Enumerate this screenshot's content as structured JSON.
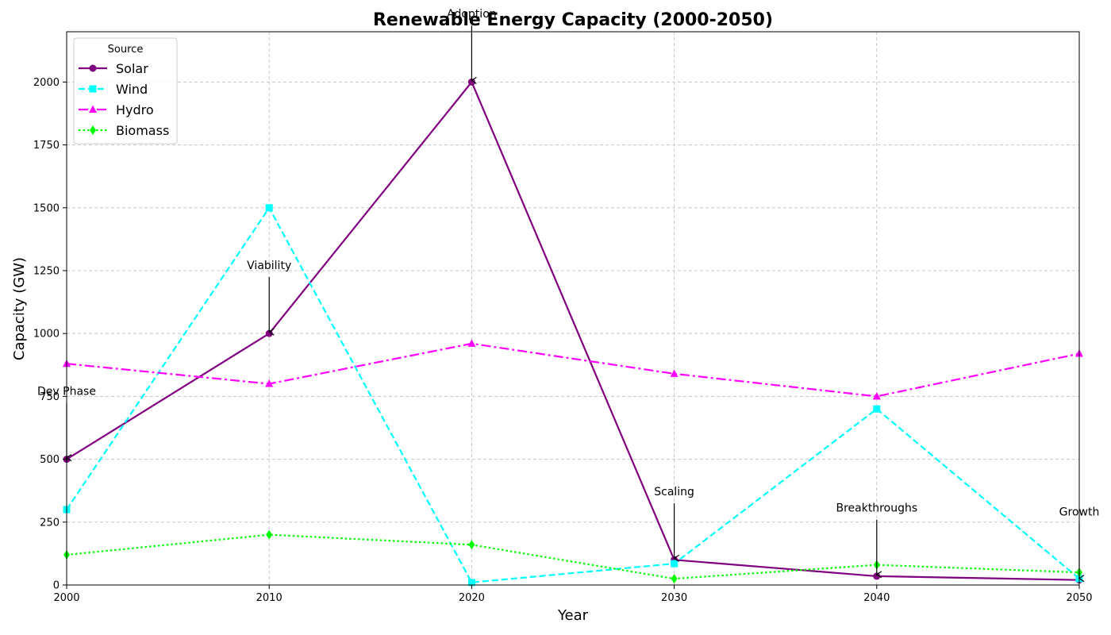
{
  "chart_data": {
    "type": "line",
    "title": "Renewable Energy Capacity (2000-2050)",
    "xlabel": "Year",
    "ylabel": "Capacity (GW)",
    "x": [
      2000,
      2010,
      2020,
      2030,
      2040,
      2050
    ],
    "xlim": [
      2000,
      2050
    ],
    "ylim": [
      0,
      2200
    ],
    "xticks": [
      "2000",
      "2010",
      "2020",
      "2030",
      "2040",
      "2050"
    ],
    "yticks": [
      "0",
      "250",
      "500",
      "750",
      "1000",
      "1250",
      "1500",
      "1750",
      "2000"
    ],
    "grid": true,
    "legend": {
      "title": "Source",
      "placement": "top-left"
    },
    "series": [
      {
        "name": "Solar",
        "values": [
          500,
          1000,
          2000,
          100,
          35,
          20
        ],
        "color": "#800080",
        "dash": "solid",
        "marker": "circle"
      },
      {
        "name": "Wind",
        "values": [
          300,
          1500,
          10,
          85,
          700,
          25
        ],
        "color": "#00ffff",
        "dash": "dashed",
        "marker": "square"
      },
      {
        "name": "Hydro",
        "values": [
          880,
          800,
          960,
          840,
          750,
          920
        ],
        "color": "#ff00ff",
        "dash": "dashdot",
        "marker": "triangle"
      },
      {
        "name": "Biomass",
        "values": [
          120,
          200,
          160,
          25,
          80,
          50
        ],
        "color": "#00ff00",
        "dash": "dotted",
        "marker": "diamond"
      }
    ],
    "annotations": [
      {
        "text": "Dev Phase",
        "x": 2000,
        "y": 500
      },
      {
        "text": "Viability",
        "x": 2010,
        "y": 1000
      },
      {
        "text": "Adoption",
        "x": 2020,
        "y": 2000
      },
      {
        "text": "Scaling",
        "x": 2030,
        "y": 100
      },
      {
        "text": "Breakthroughs",
        "x": 2040,
        "y": 35
      },
      {
        "text": "Growth",
        "x": 2050,
        "y": 20
      }
    ]
  }
}
